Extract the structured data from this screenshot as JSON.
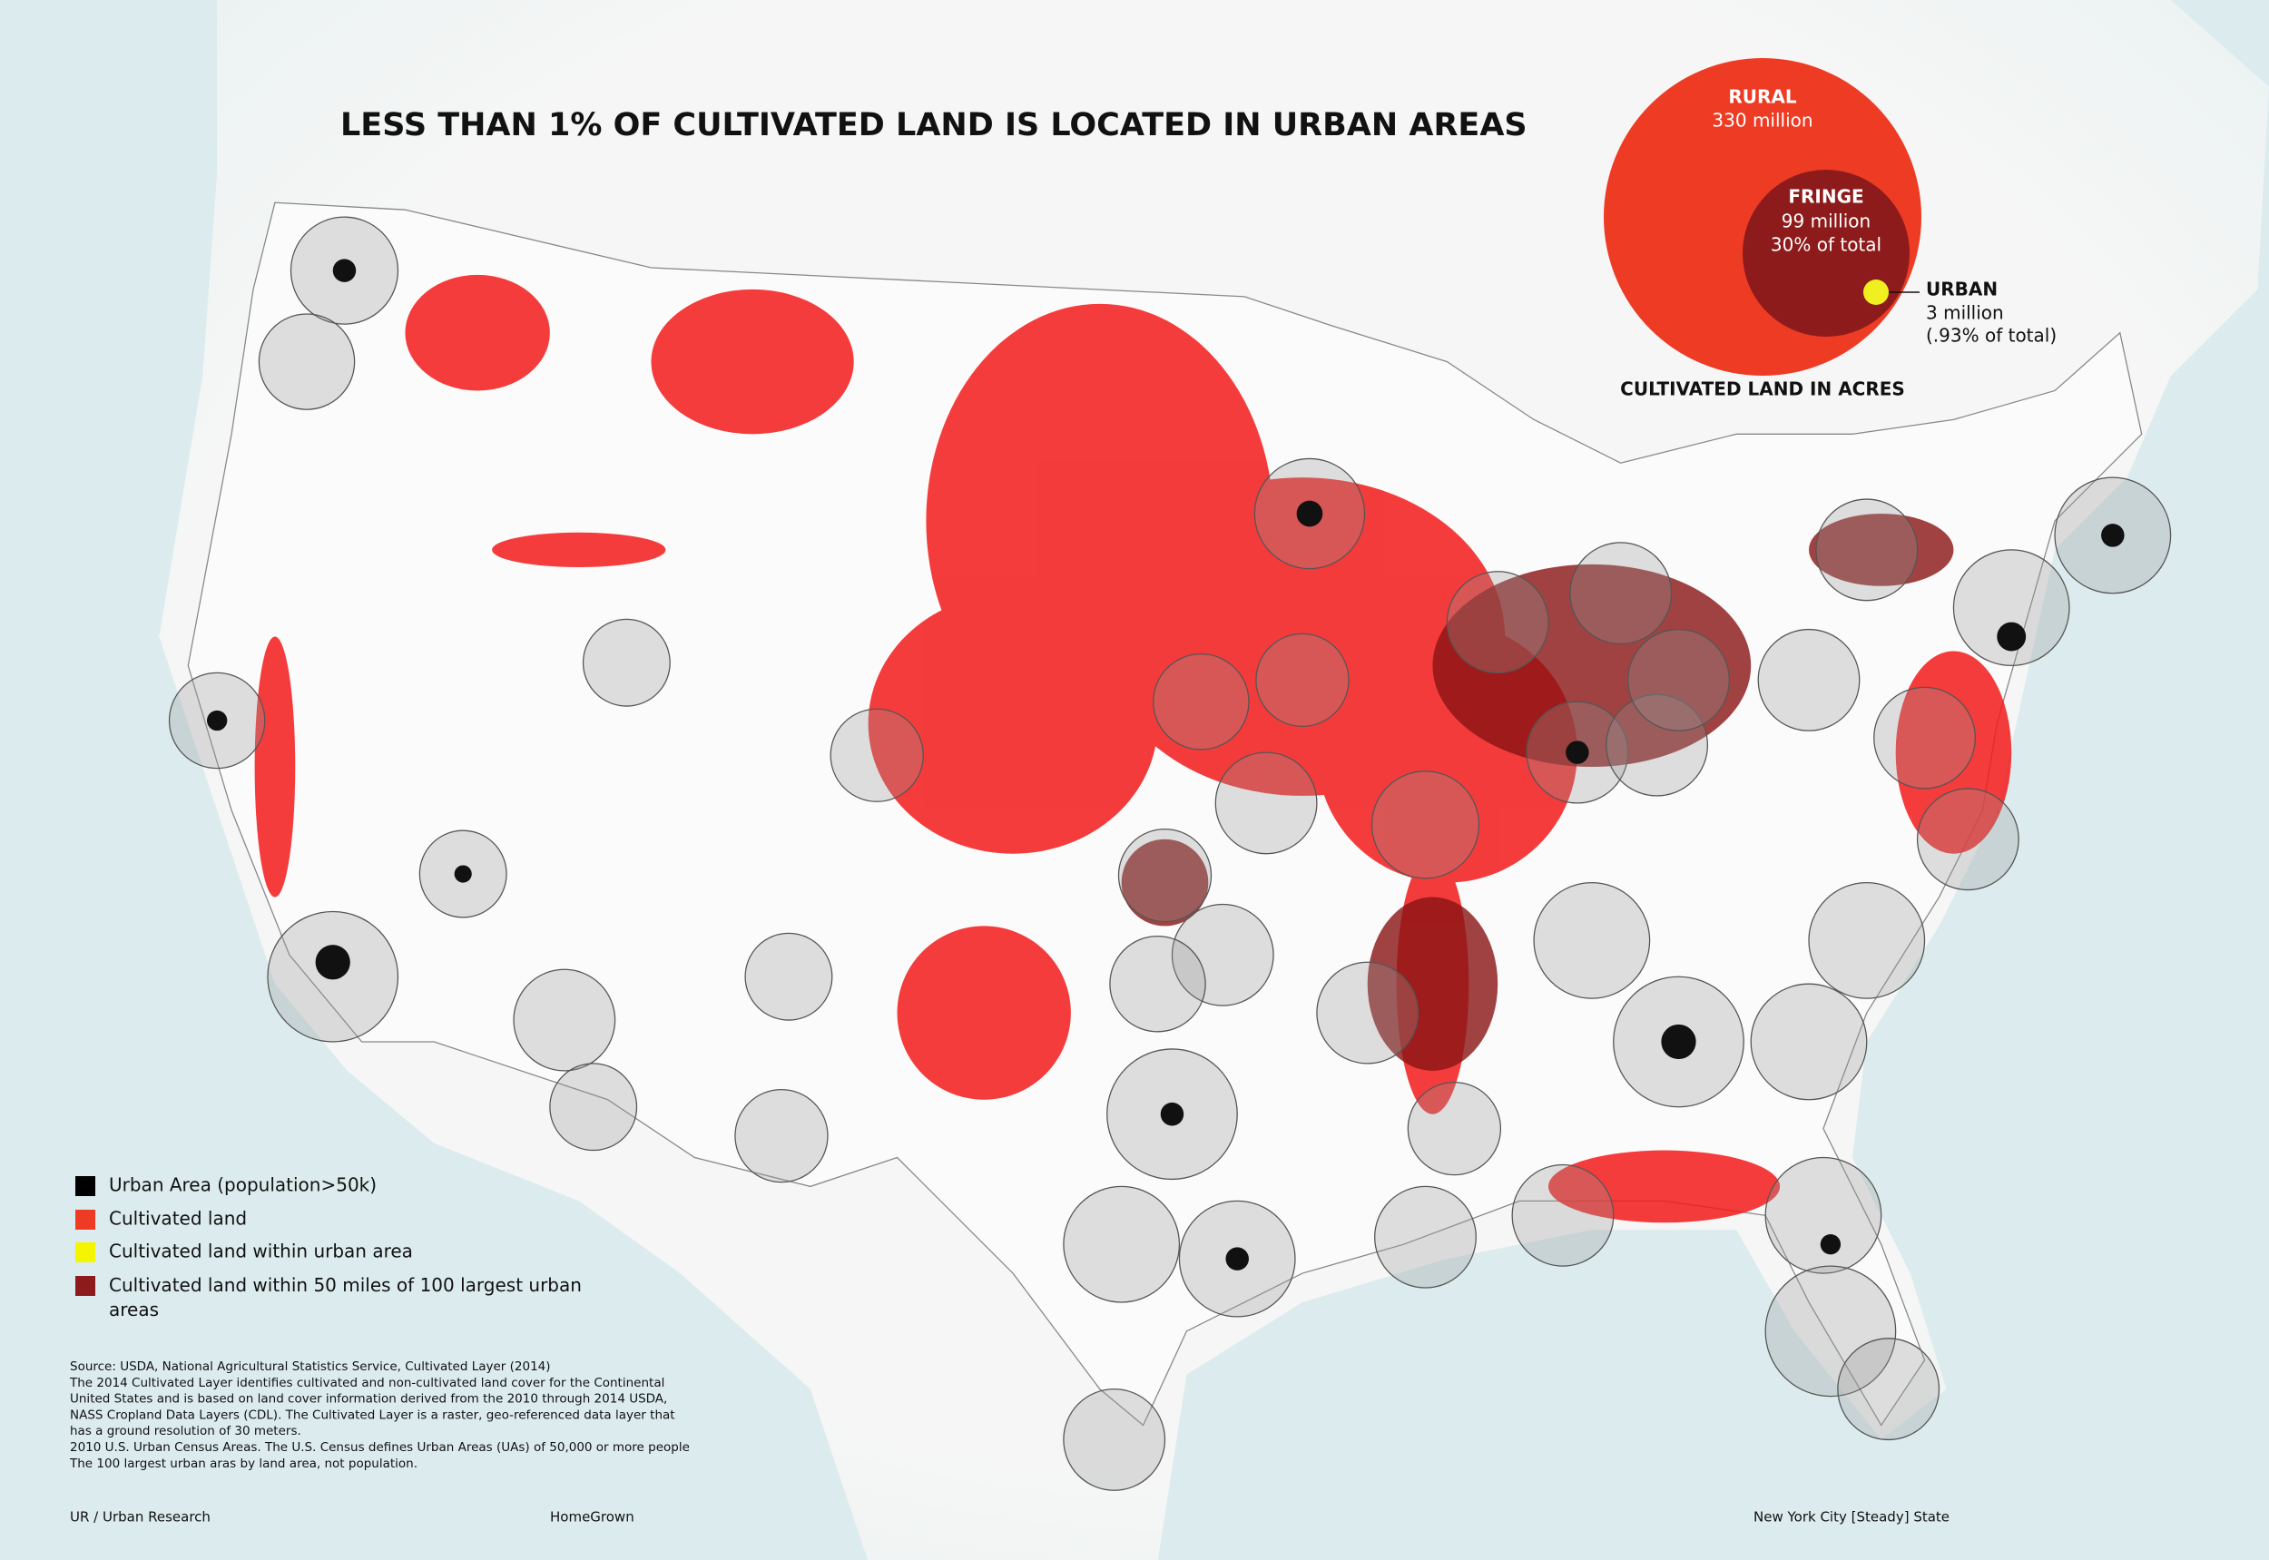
{
  "title": "LESS THAN 1% OF CULTIVATED LAND IS LOCATED IN URBAN AREAS",
  "land_chart": {
    "rural": {
      "label": "RURAL",
      "amount": "330 million"
    },
    "fringe": {
      "label": "FRINGE",
      "amount": "99 million",
      "share": "30% of total"
    },
    "urban": {
      "label": "URBAN",
      "amount": "3 million",
      "share": "(.93% of total)"
    },
    "caption": "CULTIVATED LAND IN ACRES"
  },
  "legend": [
    "Urban Area (population>50k)",
    "Cultivated land",
    "Cultivated land within urban area",
    "Cultivated land within 50 miles of 100 largest urban areas"
  ],
  "source": [
    "Source: USDA, National Agricultural Statistics Service, Cultivated Layer (2014)",
    "The 2014 Cultivated Layer identifies cultivated and non-cultivated land cover for the Continental",
    "United States and is based on land cover information derived from the 2010 through 2014 USDA,",
    "NASS Cropland Data Layers (CDL). The Cultivated Layer is a raster, geo-referenced data layer that",
    "has a ground resolution of 30 meters.",
    "2010 U.S. Urban Census Areas. The U.S. Census defines Urban Areas (UAs) of 50,000 or more people",
    "The 100 largest urban aras by land area, not population."
  ],
  "footer": [
    "UR / Urban Research",
    "HomeGrown",
    "New York City [Steady] State"
  ]
}
